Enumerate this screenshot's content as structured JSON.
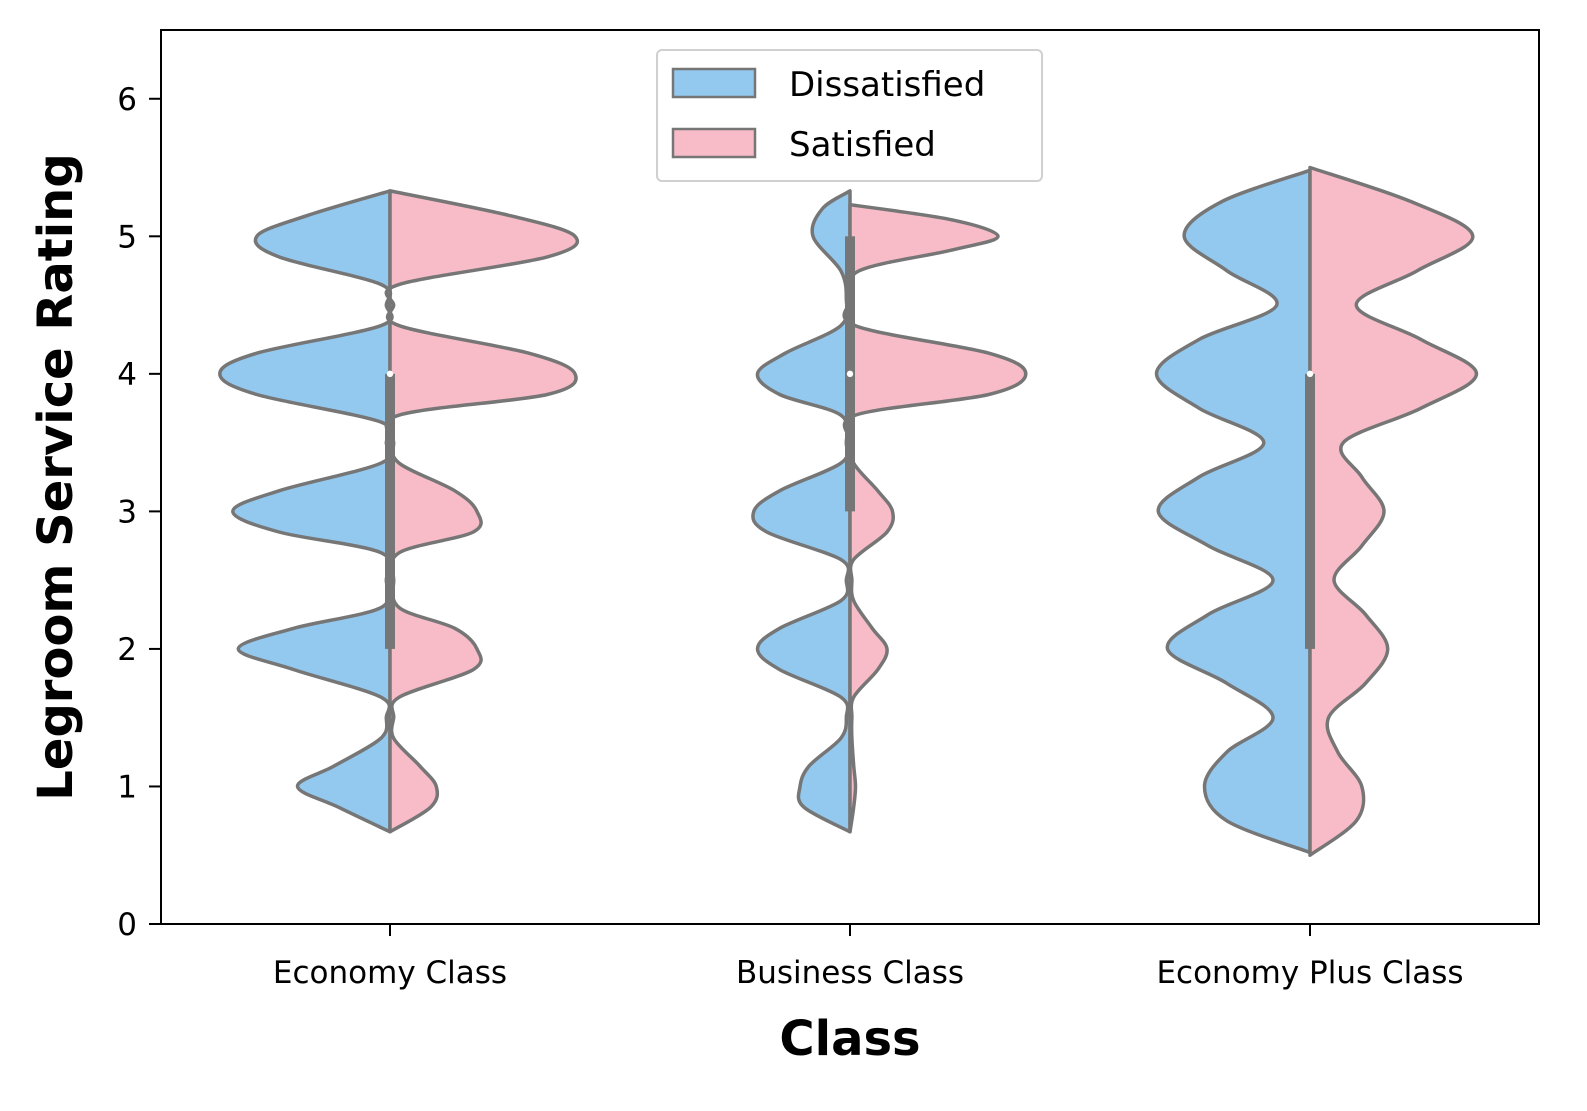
{
  "chart_data": {
    "type": "violin",
    "split": true,
    "xlabel": "Class",
    "ylabel": "Legroom Service Rating",
    "categories": [
      "Economy Class",
      "Business Class",
      "Economy Plus Class"
    ],
    "yticks": [
      0,
      1,
      2,
      3,
      4,
      5,
      6
    ],
    "ylim": [
      0,
      6.5
    ],
    "grid": false,
    "legend": {
      "placement": "upper-center",
      "entries": [
        {
          "label": "Dissatisfied",
          "color": "#93C9EF"
        },
        {
          "label": "Satisfied",
          "color": "#F7BCC8"
        }
      ]
    },
    "series": [
      {
        "name": "Dissatisfied",
        "side": "left",
        "color": "#93C9EF",
        "violins": [
          {
            "category": "Economy Class",
            "y": [
              0.67,
              0.85,
              1.0,
              1.15,
              1.35,
              1.5,
              1.65,
              1.85,
              2.0,
              2.15,
              2.3,
              2.5,
              2.7,
              2.85,
              3.0,
              3.15,
              3.35,
              3.5,
              3.65,
              3.85,
              4.0,
              4.15,
              4.35,
              4.5,
              4.65,
              4.85,
              5.0,
              5.15,
              5.33
            ],
            "density": [
              0.0,
              0.28,
              0.5,
              0.3,
              0.05,
              0.02,
              0.05,
              0.52,
              0.82,
              0.52,
              0.05,
              0.02,
              0.05,
              0.6,
              0.85,
              0.6,
              0.05,
              0.02,
              0.05,
              0.72,
              0.92,
              0.72,
              0.05,
              0.02,
              0.05,
              0.6,
              0.72,
              0.45,
              0.0
            ]
          },
          {
            "category": "Business Class",
            "y": [
              0.67,
              0.85,
              1.0,
              1.15,
              1.35,
              1.5,
              1.65,
              1.85,
              2.0,
              2.15,
              2.35,
              2.5,
              2.65,
              2.85,
              3.0,
              3.15,
              3.35,
              3.5,
              3.7,
              3.85,
              4.0,
              4.15,
              4.35,
              4.55,
              4.75,
              5.0,
              5.2,
              5.33
            ],
            "density": [
              0.0,
              0.25,
              0.27,
              0.22,
              0.05,
              0.02,
              0.05,
              0.38,
              0.5,
              0.38,
              0.05,
              0.02,
              0.05,
              0.45,
              0.52,
              0.38,
              0.05,
              0.02,
              0.05,
              0.38,
              0.5,
              0.35,
              0.05,
              0.02,
              0.05,
              0.2,
              0.15,
              0.0
            ]
          },
          {
            "category": "Economy Plus Class",
            "y": [
              0.52,
              0.75,
              1.0,
              1.25,
              1.5,
              1.75,
              2.0,
              2.25,
              2.5,
              2.75,
              3.0,
              3.25,
              3.5,
              3.75,
              4.0,
              4.25,
              4.5,
              4.75,
              5.0,
              5.25,
              5.48
            ],
            "density": [
              0.0,
              0.45,
              0.57,
              0.45,
              0.2,
              0.45,
              0.77,
              0.55,
              0.2,
              0.55,
              0.82,
              0.6,
              0.25,
              0.6,
              0.83,
              0.6,
              0.18,
              0.45,
              0.68,
              0.48,
              0.0
            ]
          }
        ]
      },
      {
        "name": "Satisfied",
        "side": "right",
        "color": "#F7BCC8",
        "violins": [
          {
            "category": "Economy Class",
            "y": [
              0.67,
              0.85,
              1.0,
              1.15,
              1.35,
              1.5,
              1.65,
              1.85,
              2.0,
              2.15,
              2.3,
              2.5,
              2.7,
              2.85,
              3.0,
              3.15,
              3.35,
              3.5,
              3.7,
              3.85,
              4.0,
              4.15,
              4.35,
              4.5,
              4.65,
              4.85,
              5.0,
              5.15,
              5.33
            ],
            "density": [
              0.0,
              0.22,
              0.25,
              0.16,
              0.02,
              0.02,
              0.05,
              0.45,
              0.47,
              0.35,
              0.05,
              0.02,
              0.05,
              0.45,
              0.47,
              0.35,
              0.05,
              0.02,
              0.05,
              0.85,
              1.0,
              0.75,
              0.05,
              0.02,
              0.05,
              0.85,
              1.0,
              0.65,
              0.0
            ]
          },
          {
            "category": "Business Class",
            "y": [
              0.67,
              0.85,
              1.0,
              1.15,
              1.35,
              1.5,
              1.65,
              1.85,
              2.0,
              2.15,
              2.35,
              2.5,
              2.65,
              2.85,
              3.0,
              3.15,
              3.35,
              3.5,
              3.7,
              3.85,
              4.0,
              4.15,
              4.35,
              4.55,
              4.75,
              4.9,
              5.0,
              5.12,
              5.23
            ],
            "density": [
              0.0,
              0.02,
              0.03,
              0.02,
              0.01,
              0.01,
              0.02,
              0.15,
              0.2,
              0.12,
              0.02,
              0.01,
              0.02,
              0.2,
              0.23,
              0.15,
              0.02,
              0.01,
              0.03,
              0.75,
              0.95,
              0.75,
              0.03,
              0.01,
              0.05,
              0.55,
              0.8,
              0.55,
              0.0
            ]
          },
          {
            "category": "Economy Plus Class",
            "y": [
              0.5,
              0.75,
              1.0,
              1.25,
              1.5,
              1.75,
              2.0,
              2.25,
              2.5,
              2.75,
              3.0,
              3.25,
              3.5,
              3.75,
              4.0,
              4.25,
              4.5,
              4.75,
              5.0,
              5.25,
              5.5
            ],
            "density": [
              0.0,
              0.25,
              0.28,
              0.15,
              0.1,
              0.3,
              0.42,
              0.3,
              0.13,
              0.28,
              0.4,
              0.28,
              0.18,
              0.6,
              0.9,
              0.6,
              0.25,
              0.58,
              0.88,
              0.55,
              0.0
            ]
          }
        ]
      }
    ],
    "box": [
      {
        "category": "Economy Class",
        "q1": 2.0,
        "median": 4.0,
        "q3": 4.0,
        "whisker_low": 2.0,
        "whisker_high": 4.0
      },
      {
        "category": "Business Class",
        "q1": 3.0,
        "median": 4.0,
        "q3": 5.0,
        "whisker_low": 3.0,
        "whisker_high": 5.0
      },
      {
        "category": "Economy Plus Class",
        "q1": 2.0,
        "median": 4.0,
        "q3": 4.0,
        "whisker_low": 2.0,
        "whisker_high": 4.0
      }
    ],
    "colors": {
      "outline": "#767676",
      "axis": "#000000"
    }
  }
}
